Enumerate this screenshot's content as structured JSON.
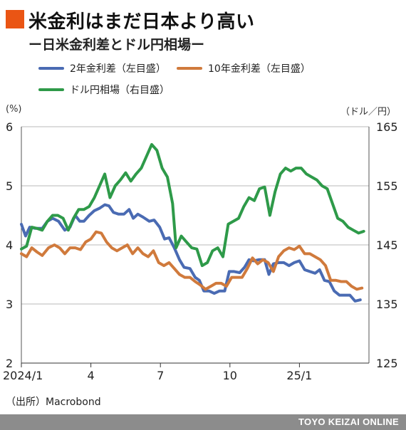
{
  "header": {
    "title": "米金利はまだ日本より高い",
    "subtitle": "ー日米金利差とドル円相場ー"
  },
  "chart_data": {
    "type": "line",
    "title": "米金利はまだ日本より高い",
    "subtitle": "ー日米金利差とドル円相場ー",
    "left_unit": "(%)",
    "right_unit": "（ドル／円）",
    "left_axis": {
      "ylim": [
        2,
        6
      ],
      "ticks": [
        "2",
        "3",
        "4",
        "5",
        "6"
      ]
    },
    "right_axis": {
      "ylim": [
        125,
        165
      ],
      "ticks": [
        "125",
        "135",
        "145",
        "155",
        "165"
      ]
    },
    "x_domain": [
      0,
      1
    ],
    "x_ticks": [
      {
        "label": "2024/1",
        "x": 0.0
      },
      {
        "label": "4",
        "x": 0.2
      },
      {
        "label": "7",
        "x": 0.4
      },
      {
        "label": "10",
        "x": 0.6
      },
      {
        "label": "25/1",
        "x": 0.8
      }
    ],
    "grid": "horizontal",
    "series": [
      {
        "name": "2年金利差（左目盛）",
        "axis": "left",
        "color": "#4a6bb3",
        "points": [
          [
            0.0,
            4.35
          ],
          [
            0.012,
            4.15
          ],
          [
            0.024,
            4.3
          ],
          [
            0.04,
            4.28
          ],
          [
            0.06,
            4.28
          ],
          [
            0.075,
            4.4
          ],
          [
            0.09,
            4.45
          ],
          [
            0.107,
            4.4
          ],
          [
            0.125,
            4.25
          ],
          [
            0.14,
            4.3
          ],
          [
            0.155,
            4.5
          ],
          [
            0.168,
            4.4
          ],
          [
            0.18,
            4.4
          ],
          [
            0.195,
            4.5
          ],
          [
            0.21,
            4.58
          ],
          [
            0.225,
            4.62
          ],
          [
            0.24,
            4.68
          ],
          [
            0.252,
            4.66
          ],
          [
            0.265,
            4.55
          ],
          [
            0.28,
            4.52
          ],
          [
            0.295,
            4.52
          ],
          [
            0.31,
            4.6
          ],
          [
            0.322,
            4.45
          ],
          [
            0.335,
            4.52
          ],
          [
            0.35,
            4.47
          ],
          [
            0.368,
            4.4
          ],
          [
            0.382,
            4.42
          ],
          [
            0.398,
            4.3
          ],
          [
            0.412,
            4.1
          ],
          [
            0.425,
            4.12
          ],
          [
            0.44,
            3.95
          ],
          [
            0.455,
            3.75
          ],
          [
            0.468,
            3.62
          ],
          [
            0.485,
            3.6
          ],
          [
            0.5,
            3.45
          ],
          [
            0.512,
            3.4
          ],
          [
            0.525,
            3.22
          ],
          [
            0.54,
            3.22
          ],
          [
            0.555,
            3.18
          ],
          [
            0.57,
            3.22
          ],
          [
            0.585,
            3.22
          ],
          [
            0.598,
            3.55
          ],
          [
            0.612,
            3.55
          ],
          [
            0.628,
            3.53
          ],
          [
            0.642,
            3.62
          ],
          [
            0.655,
            3.75
          ],
          [
            0.668,
            3.73
          ],
          [
            0.683,
            3.75
          ],
          [
            0.7,
            3.75
          ],
          [
            0.712,
            3.5
          ],
          [
            0.725,
            3.68
          ],
          [
            0.74,
            3.7
          ],
          [
            0.755,
            3.7
          ],
          [
            0.77,
            3.65
          ],
          [
            0.785,
            3.7
          ],
          [
            0.8,
            3.73
          ],
          [
            0.815,
            3.58
          ],
          [
            0.83,
            3.55
          ],
          [
            0.845,
            3.52
          ],
          [
            0.858,
            3.58
          ],
          [
            0.872,
            3.4
          ],
          [
            0.886,
            3.38
          ],
          [
            0.9,
            3.22
          ],
          [
            0.915,
            3.15
          ],
          [
            0.93,
            3.15
          ],
          [
            0.945,
            3.15
          ],
          [
            0.96,
            3.05
          ],
          [
            0.975,
            3.07
          ]
        ]
      },
      {
        "name": "10年金利差（左目盛）",
        "axis": "left",
        "color": "#d07a3c",
        "points": [
          [
            0.0,
            3.85
          ],
          [
            0.015,
            3.8
          ],
          [
            0.03,
            3.95
          ],
          [
            0.045,
            3.88
          ],
          [
            0.06,
            3.82
          ],
          [
            0.078,
            3.95
          ],
          [
            0.095,
            4.0
          ],
          [
            0.11,
            3.95
          ],
          [
            0.125,
            3.85
          ],
          [
            0.14,
            3.95
          ],
          [
            0.155,
            3.95
          ],
          [
            0.17,
            3.92
          ],
          [
            0.185,
            4.05
          ],
          [
            0.2,
            4.1
          ],
          [
            0.215,
            4.22
          ],
          [
            0.23,
            4.2
          ],
          [
            0.245,
            4.05
          ],
          [
            0.26,
            3.95
          ],
          [
            0.275,
            3.9
          ],
          [
            0.29,
            3.95
          ],
          [
            0.305,
            4.0
          ],
          [
            0.32,
            3.85
          ],
          [
            0.335,
            3.95
          ],
          [
            0.35,
            3.85
          ],
          [
            0.365,
            3.8
          ],
          [
            0.38,
            3.9
          ],
          [
            0.395,
            3.7
          ],
          [
            0.41,
            3.65
          ],
          [
            0.425,
            3.7
          ],
          [
            0.44,
            3.6
          ],
          [
            0.455,
            3.5
          ],
          [
            0.47,
            3.45
          ],
          [
            0.485,
            3.45
          ],
          [
            0.5,
            3.38
          ],
          [
            0.515,
            3.32
          ],
          [
            0.53,
            3.25
          ],
          [
            0.545,
            3.3
          ],
          [
            0.56,
            3.35
          ],
          [
            0.575,
            3.35
          ],
          [
            0.59,
            3.3
          ],
          [
            0.605,
            3.45
          ],
          [
            0.62,
            3.45
          ],
          [
            0.635,
            3.45
          ],
          [
            0.65,
            3.6
          ],
          [
            0.665,
            3.78
          ],
          [
            0.68,
            3.68
          ],
          [
            0.695,
            3.75
          ],
          [
            0.71,
            3.7
          ],
          [
            0.725,
            3.55
          ],
          [
            0.74,
            3.8
          ],
          [
            0.755,
            3.9
          ],
          [
            0.77,
            3.95
          ],
          [
            0.785,
            3.92
          ],
          [
            0.8,
            3.98
          ],
          [
            0.815,
            3.85
          ],
          [
            0.83,
            3.85
          ],
          [
            0.845,
            3.8
          ],
          [
            0.86,
            3.75
          ],
          [
            0.875,
            3.65
          ],
          [
            0.89,
            3.4
          ],
          [
            0.905,
            3.4
          ],
          [
            0.92,
            3.38
          ],
          [
            0.935,
            3.38
          ],
          [
            0.95,
            3.3
          ],
          [
            0.965,
            3.25
          ],
          [
            0.98,
            3.27
          ]
        ]
      },
      {
        "name": "ドル円相場（右目盛）",
        "axis": "right",
        "color": "#2e9a49",
        "points": [
          [
            0.0,
            144.3
          ],
          [
            0.015,
            144.8
          ],
          [
            0.03,
            148.0
          ],
          [
            0.045,
            147.8
          ],
          [
            0.06,
            147.5
          ],
          [
            0.075,
            149.0
          ],
          [
            0.09,
            150.0
          ],
          [
            0.105,
            150.0
          ],
          [
            0.12,
            149.5
          ],
          [
            0.135,
            147.5
          ],
          [
            0.15,
            149.5
          ],
          [
            0.165,
            151.0
          ],
          [
            0.18,
            151.0
          ],
          [
            0.195,
            151.5
          ],
          [
            0.21,
            153.0
          ],
          [
            0.225,
            155.0
          ],
          [
            0.24,
            157.0
          ],
          [
            0.255,
            153.0
          ],
          [
            0.27,
            155.0
          ],
          [
            0.285,
            156.0
          ],
          [
            0.3,
            157.2
          ],
          [
            0.315,
            155.8
          ],
          [
            0.33,
            157.0
          ],
          [
            0.345,
            158.0
          ],
          [
            0.36,
            160.0
          ],
          [
            0.375,
            162.0
          ],
          [
            0.39,
            161.0
          ],
          [
            0.405,
            158.0
          ],
          [
            0.42,
            156.5
          ],
          [
            0.435,
            152.0
          ],
          [
            0.445,
            144.5
          ],
          [
            0.46,
            146.5
          ],
          [
            0.475,
            145.5
          ],
          [
            0.49,
            144.5
          ],
          [
            0.505,
            144.3
          ],
          [
            0.52,
            141.5
          ],
          [
            0.535,
            142.0
          ],
          [
            0.55,
            144.0
          ],
          [
            0.565,
            144.5
          ],
          [
            0.58,
            143.0
          ],
          [
            0.595,
            148.5
          ],
          [
            0.61,
            149.0
          ],
          [
            0.625,
            149.5
          ],
          [
            0.64,
            151.5
          ],
          [
            0.655,
            153.0
          ],
          [
            0.67,
            152.5
          ],
          [
            0.685,
            154.5
          ],
          [
            0.7,
            154.8
          ],
          [
            0.715,
            150.0
          ],
          [
            0.73,
            154.0
          ],
          [
            0.745,
            157.0
          ],
          [
            0.76,
            158.0
          ],
          [
            0.775,
            157.5
          ],
          [
            0.79,
            158.0
          ],
          [
            0.805,
            158.0
          ],
          [
            0.82,
            157.0
          ],
          [
            0.835,
            156.5
          ],
          [
            0.85,
            156.0
          ],
          [
            0.865,
            155.0
          ],
          [
            0.88,
            154.5
          ],
          [
            0.895,
            152.0
          ],
          [
            0.91,
            149.5
          ],
          [
            0.925,
            149.0
          ],
          [
            0.94,
            148.0
          ],
          [
            0.955,
            147.5
          ],
          [
            0.97,
            147.0
          ],
          [
            0.985,
            147.3
          ]
        ]
      }
    ]
  },
  "legend": [
    {
      "label": "2年金利差（左目盛）",
      "color": "#4a6bb3"
    },
    {
      "label": "10年金利差（左目盛）",
      "color": "#d07a3c"
    },
    {
      "label": "ドル円相場（右目盛）",
      "color": "#2e9a49"
    }
  ],
  "source": "（出所）Macrobond",
  "footer": "TOYO KEIZAI ONLINE"
}
